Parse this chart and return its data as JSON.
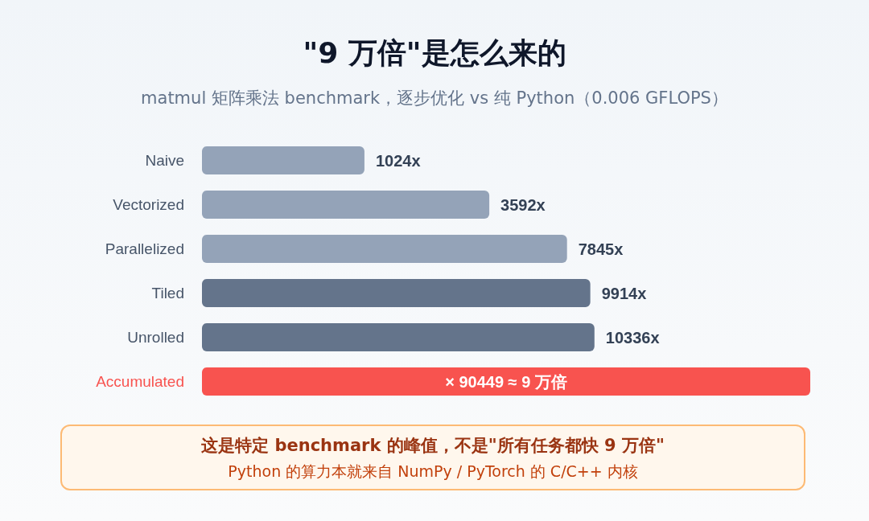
{
  "chart_data": {
    "type": "bar",
    "orientation": "horizontal",
    "title": "\"9 万倍\"是怎么来的",
    "subtitle": "matmul 矩阵乘法 benchmark，逐步优化 vs 纯 Python（0.006 GFLOPS）",
    "categories": [
      "Naive",
      "Vectorized",
      "Parallelized",
      "Tiled",
      "Unrolled",
      "Accumulated"
    ],
    "values": [
      1024,
      3592,
      7845,
      9914,
      10336,
      90449
    ],
    "colors": [
      "#94a3b8",
      "#94a3b8",
      "#94a3b8",
      "#64748b",
      "#64748b",
      "#f8534f"
    ],
    "value_labels": [
      "1024x",
      "3592x",
      "7845x",
      "9914x",
      "10336x",
      "× 90449 ≈ 9 万倍"
    ],
    "log": "x",
    "xlim": [
      200,
      90449
    ],
    "tick_labels": "y",
    "grid": false,
    "annotations": [
      "这是特定 benchmark 的峰值，不是\"所有任务都快 9 万倍\"",
      "Python 的算力本就来自 NumPy / PyTorch 的 C/C++ 内核"
    ]
  }
}
